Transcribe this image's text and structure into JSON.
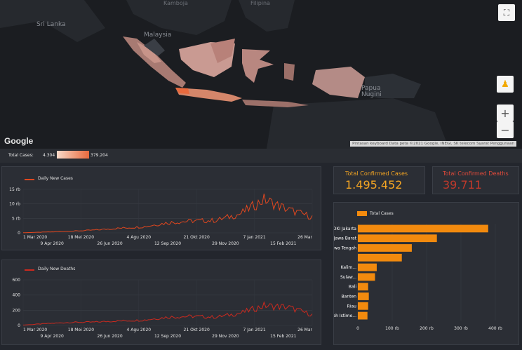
{
  "map": {
    "labels": [
      {
        "text": "Kamboja",
        "cls": ""
      },
      {
        "text": "Sri Lanka",
        "cls": "big"
      },
      {
        "text": "Filipina",
        "cls": ""
      },
      {
        "text": "Malaysia",
        "cls": "big"
      },
      {
        "text": "Papua Nugini",
        "cls": "big"
      }
    ],
    "google": "Google",
    "attribution": "Pintasan keyboard   Data peta ©2021 Google, INEGI, SK telecom   Syarat Penggunaan",
    "fullscreen_icon": "fullscreen-icon",
    "pegman_icon": "pegman-icon",
    "zoom_in": "+",
    "zoom_out": "−"
  },
  "legend": {
    "label": "Total Cases:",
    "min": "4.304",
    "max": "379.204"
  },
  "kpi": {
    "confirmed_cases_label": "Total Confirmed Cases",
    "confirmed_cases_value": "1.495.452",
    "confirmed_deaths_label": "Total Confirmed Deaths",
    "confirmed_deaths_value": "39.711",
    "cases_color": "#f5a623",
    "deaths_color": "#e04a3a"
  },
  "chart_data": [
    {
      "type": "line",
      "title": "",
      "series": [
        {
          "name": "Daily New Cases",
          "color": "#e0471f"
        }
      ],
      "yticks": [
        "0",
        "5 rb",
        "10 rb",
        "15 rb"
      ],
      "ylim": [
        0,
        15000
      ],
      "xticks_top": [
        "1 Mar 2020",
        "18 Mei 2020",
        "4 Agu 2020",
        "21 Okt 2020",
        "7 Jan 2021",
        "26 Mar"
      ],
      "xticks_bottom": [
        "9 Apr 2020",
        "26 Jun 2020",
        "12 Sep 2020",
        "29 Nov 2020",
        "15 Feb 2021"
      ],
      "x": [
        "2020-03",
        "2020-04",
        "2020-05",
        "2020-06",
        "2020-07",
        "2020-08",
        "2020-09",
        "2020-10",
        "2020-11",
        "2020-12",
        "2021-01",
        "2021-02",
        "2021-03"
      ],
      "values": [
        50,
        300,
        550,
        1000,
        1600,
        2100,
        3500,
        4100,
        4300,
        6500,
        11500,
        8000,
        5500
      ]
    },
    {
      "type": "line",
      "title": "",
      "series": [
        {
          "name": "Daily New Deaths",
          "color": "#cc2a1f"
        }
      ],
      "yticks": [
        "0",
        "200",
        "400",
        "600"
      ],
      "ylim": [
        0,
        600
      ],
      "xticks_top": [
        "1 Mar 2020",
        "18 Mei 2020",
        "4 Agu 2020",
        "21 Okt 2020",
        "7 Jan 2021",
        "26 Mar"
      ],
      "xticks_bottom": [
        "9 Apr 2020",
        "26 Jun 2020",
        "12 Sep 2020",
        "29 Nov 2020",
        "15 Feb 2021"
      ],
      "x": [
        "2020-03",
        "2020-04",
        "2020-05",
        "2020-06",
        "2020-07",
        "2020-08",
        "2020-09",
        "2020-10",
        "2020-11",
        "2020-12",
        "2021-01",
        "2021-02",
        "2021-03"
      ],
      "values": [
        5,
        25,
        40,
        45,
        60,
        70,
        110,
        120,
        110,
        160,
        260,
        240,
        140
      ]
    },
    {
      "type": "bar",
      "orientation": "horizontal",
      "series": [
        {
          "name": "Total Cases",
          "color": "#f28a0e"
        }
      ],
      "categories": [
        "DKI Jakarta",
        "Jawa Barat",
        "Jawa Tengah",
        "",
        "Kalim...",
        "Sulaw...",
        "Bali",
        "Banten",
        "Riau",
        "Daerah Istime..."
      ],
      "values": [
        379204,
        230000,
        157000,
        128000,
        55000,
        50000,
        30000,
        32000,
        30000,
        28000
      ],
      "xticks": [
        "0",
        "100 rb",
        "200 rb",
        "300 rb",
        "400 rb"
      ],
      "xlim": [
        0,
        400000
      ]
    }
  ]
}
